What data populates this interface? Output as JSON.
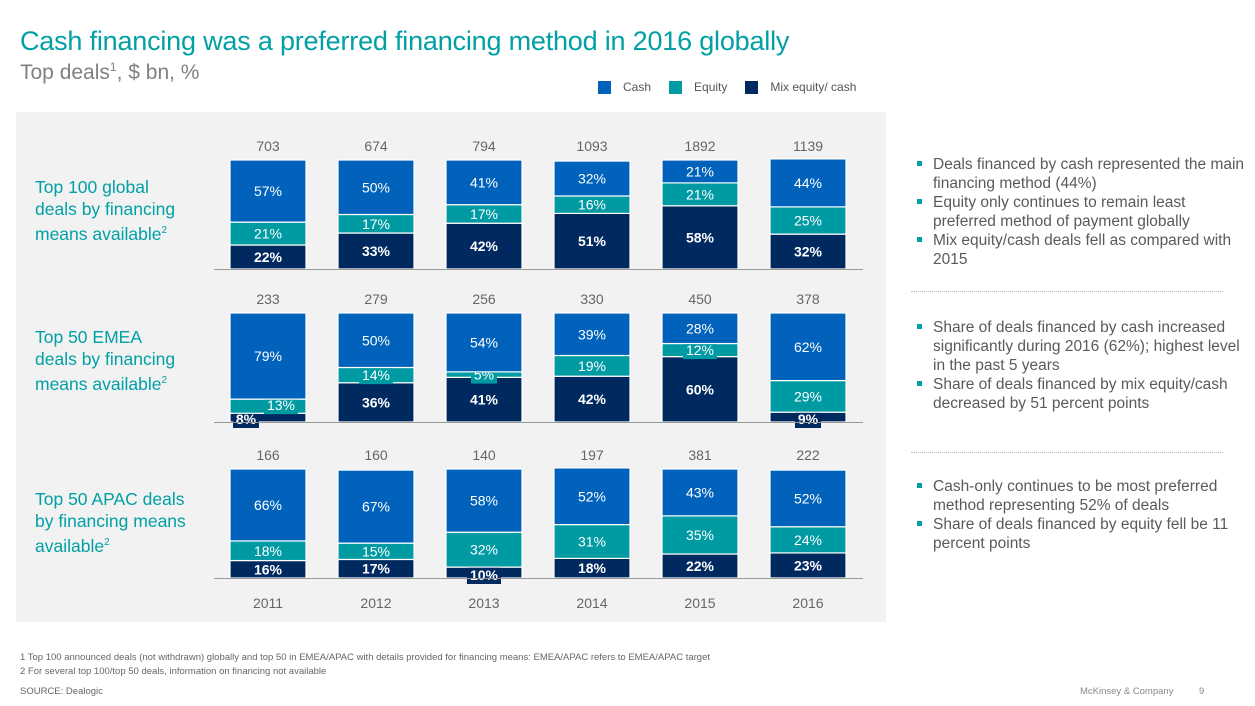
{
  "header": {
    "title": "Cash financing was a preferred financing method in 2016 globally",
    "subtitle_main": "Top deals",
    "subtitle_sup": "1",
    "subtitle_rest": ", $ bn, %"
  },
  "legend": [
    {
      "label": "Cash",
      "color": "#0062bb"
    },
    {
      "label": "Equity",
      "color": "#009aa3"
    },
    {
      "label": "Mix equity/ cash",
      "color": "#002960"
    }
  ],
  "row_labels": [
    {
      "line1": "Top 100 global",
      "line2": "deals by financing",
      "line3": "means available",
      "sup": "2"
    },
    {
      "line1": "Top 50 EMEA",
      "line2": "deals by financing",
      "line3": "means available",
      "sup": "2"
    },
    {
      "line1": "Top 50 APAC deals",
      "line2": "by financing means",
      "line3": "available",
      "sup": "2"
    }
  ],
  "chart_data": {
    "type": "bar",
    "stacked": true,
    "normalized": true,
    "title": "Top deals, $ bn, %",
    "categories": [
      "2011",
      "2012",
      "2013",
      "2014",
      "2015",
      "2016"
    ],
    "series_names": [
      "Cash",
      "Equity",
      "Mix equity/ cash"
    ],
    "colors": {
      "Cash": "#0062bb",
      "Equity": "#009aa3",
      "Mix equity/ cash": "#002960"
    },
    "panels": [
      {
        "name": "Top 100 global deals by financing means available",
        "totals": [
          703,
          674,
          794,
          1093,
          1892,
          1139
        ],
        "series": [
          {
            "name": "Mix equity/ cash",
            "values": [
              22,
              33,
              42,
              51,
              58,
              32
            ]
          },
          {
            "name": "Equity",
            "values": [
              21,
              17,
              17,
              16,
              21,
              25
            ]
          },
          {
            "name": "Cash",
            "values": [
              57,
              50,
              41,
              32,
              21,
              44
            ]
          }
        ]
      },
      {
        "name": "Top 50 EMEA deals by financing means available",
        "totals": [
          233,
          279,
          256,
          330,
          450,
          378
        ],
        "series": [
          {
            "name": "Mix equity/ cash",
            "values": [
              8,
              36,
              41,
              42,
              60,
              9
            ]
          },
          {
            "name": "Equity",
            "values": [
              13,
              14,
              5,
              19,
              12,
              29
            ]
          },
          {
            "name": "Cash",
            "values": [
              79,
              50,
              54,
              39,
              28,
              62
            ]
          }
        ]
      },
      {
        "name": "Top 50 APAC deals by financing means available",
        "totals": [
          166,
          160,
          140,
          197,
          381,
          222
        ],
        "series": [
          {
            "name": "Mix equity/ cash",
            "values": [
              16,
              17,
              10,
              18,
              22,
              23
            ]
          },
          {
            "name": "Equity",
            "values": [
              18,
              15,
              32,
              31,
              35,
              24
            ]
          },
          {
            "name": "Cash",
            "values": [
              66,
              67,
              58,
              52,
              43,
              52
            ]
          }
        ]
      }
    ],
    "ylim": [
      0,
      100
    ],
    "xlabel": "",
    "ylabel": ""
  },
  "notes": [
    {
      "bullets": [
        "Deals financed by cash represented the main financing method (44%)",
        "Equity only continues to remain least preferred method of payment globally",
        "Mix equity/cash deals fell as compared with 2015"
      ]
    },
    {
      "bullets": [
        "Share of deals financed by cash increased significantly during 2016 (62%); highest level in the past 5 years",
        "Share of deals financed by mix equity/cash decreased by 51 percent points"
      ]
    },
    {
      "bullets": [
        "Cash-only continues to be most preferred method representing 52% of deals",
        "Share of deals financed by equity fell be 11 percent points"
      ]
    }
  ],
  "footnotes": [
    "1 Top 100 announced deals (not withdrawn) globally and top 50 in EMEA/APAC with details provided for financing means: EMEA/APAC refers to EMEA/APAC target",
    "2 For several top 100/top 50 deals, information on financing not available"
  ],
  "source": "SOURCE: Dealogic",
  "brand": "McKinsey & Company",
  "page_number": "9"
}
